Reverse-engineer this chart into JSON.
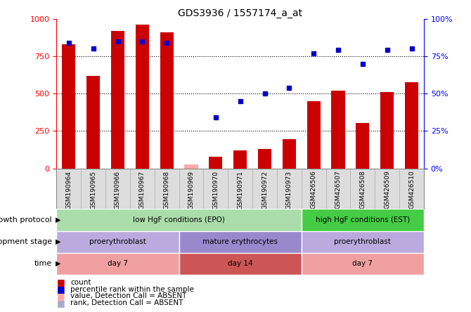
{
  "title": "GDS3936 / 1557174_a_at",
  "samples": [
    "GSM190964",
    "GSM190965",
    "GSM190966",
    "GSM190967",
    "GSM190968",
    "GSM190969",
    "GSM190970",
    "GSM190971",
    "GSM190972",
    "GSM190973",
    "GSM426506",
    "GSM426507",
    "GSM426508",
    "GSM426509",
    "GSM426510"
  ],
  "bar_heights": [
    830,
    620,
    920,
    960,
    910,
    25,
    80,
    120,
    130,
    195,
    450,
    520,
    305,
    510,
    575
  ],
  "bar_absent": [
    false,
    false,
    false,
    false,
    false,
    true,
    false,
    false,
    false,
    false,
    false,
    false,
    false,
    false,
    false
  ],
  "percentile_ranks": [
    84,
    80,
    85,
    85,
    84,
    null,
    34,
    45,
    50,
    54,
    77,
    79,
    70,
    79,
    80
  ],
  "rank_absent": [
    false,
    false,
    false,
    false,
    false,
    true,
    false,
    false,
    false,
    false,
    false,
    false,
    false,
    false,
    false
  ],
  "bar_color": "#cc0000",
  "bar_absent_color": "#ffaaaa",
  "dot_color": "#0000cc",
  "dot_absent_color": "#aaaacc",
  "ylim_left": [
    0,
    1000
  ],
  "ylim_right": [
    0,
    100
  ],
  "yticks_left": [
    0,
    250,
    500,
    750,
    1000
  ],
  "yticks_right": [
    0,
    25,
    50,
    75,
    100
  ],
  "ytick_labels_right": [
    "0%",
    "25%",
    "50%",
    "75%",
    "100%"
  ],
  "growth_protocol": [
    {
      "label": "low HgF conditions (EPO)",
      "start": 0,
      "end": 10,
      "color": "#aaddaa"
    },
    {
      "label": "high HgF conditions (EST)",
      "start": 10,
      "end": 15,
      "color": "#44cc44"
    }
  ],
  "development_stage": [
    {
      "label": "proerythroblast",
      "start": 0,
      "end": 5,
      "color": "#bbaadd"
    },
    {
      "label": "mature erythrocytes",
      "start": 5,
      "end": 10,
      "color": "#9988cc"
    },
    {
      "label": "proerythroblast",
      "start": 10,
      "end": 15,
      "color": "#bbaadd"
    }
  ],
  "time": [
    {
      "label": "day 7",
      "start": 0,
      "end": 5,
      "color": "#f0a0a0"
    },
    {
      "label": "day 14",
      "start": 5,
      "end": 10,
      "color": "#cc5555"
    },
    {
      "label": "day 7",
      "start": 10,
      "end": 15,
      "color": "#f0a0a0"
    }
  ],
  "legend": [
    {
      "color": "#cc0000",
      "label": "count"
    },
    {
      "color": "#0000cc",
      "label": "percentile rank within the sample"
    },
    {
      "color": "#ffaaaa",
      "label": "value, Detection Call = ABSENT"
    },
    {
      "color": "#aaaacc",
      "label": "rank, Detection Call = ABSENT"
    }
  ],
  "row_labels": [
    "growth protocol",
    "development stage",
    "time"
  ],
  "bg_color": "#ffffff",
  "bar_width": 0.55
}
